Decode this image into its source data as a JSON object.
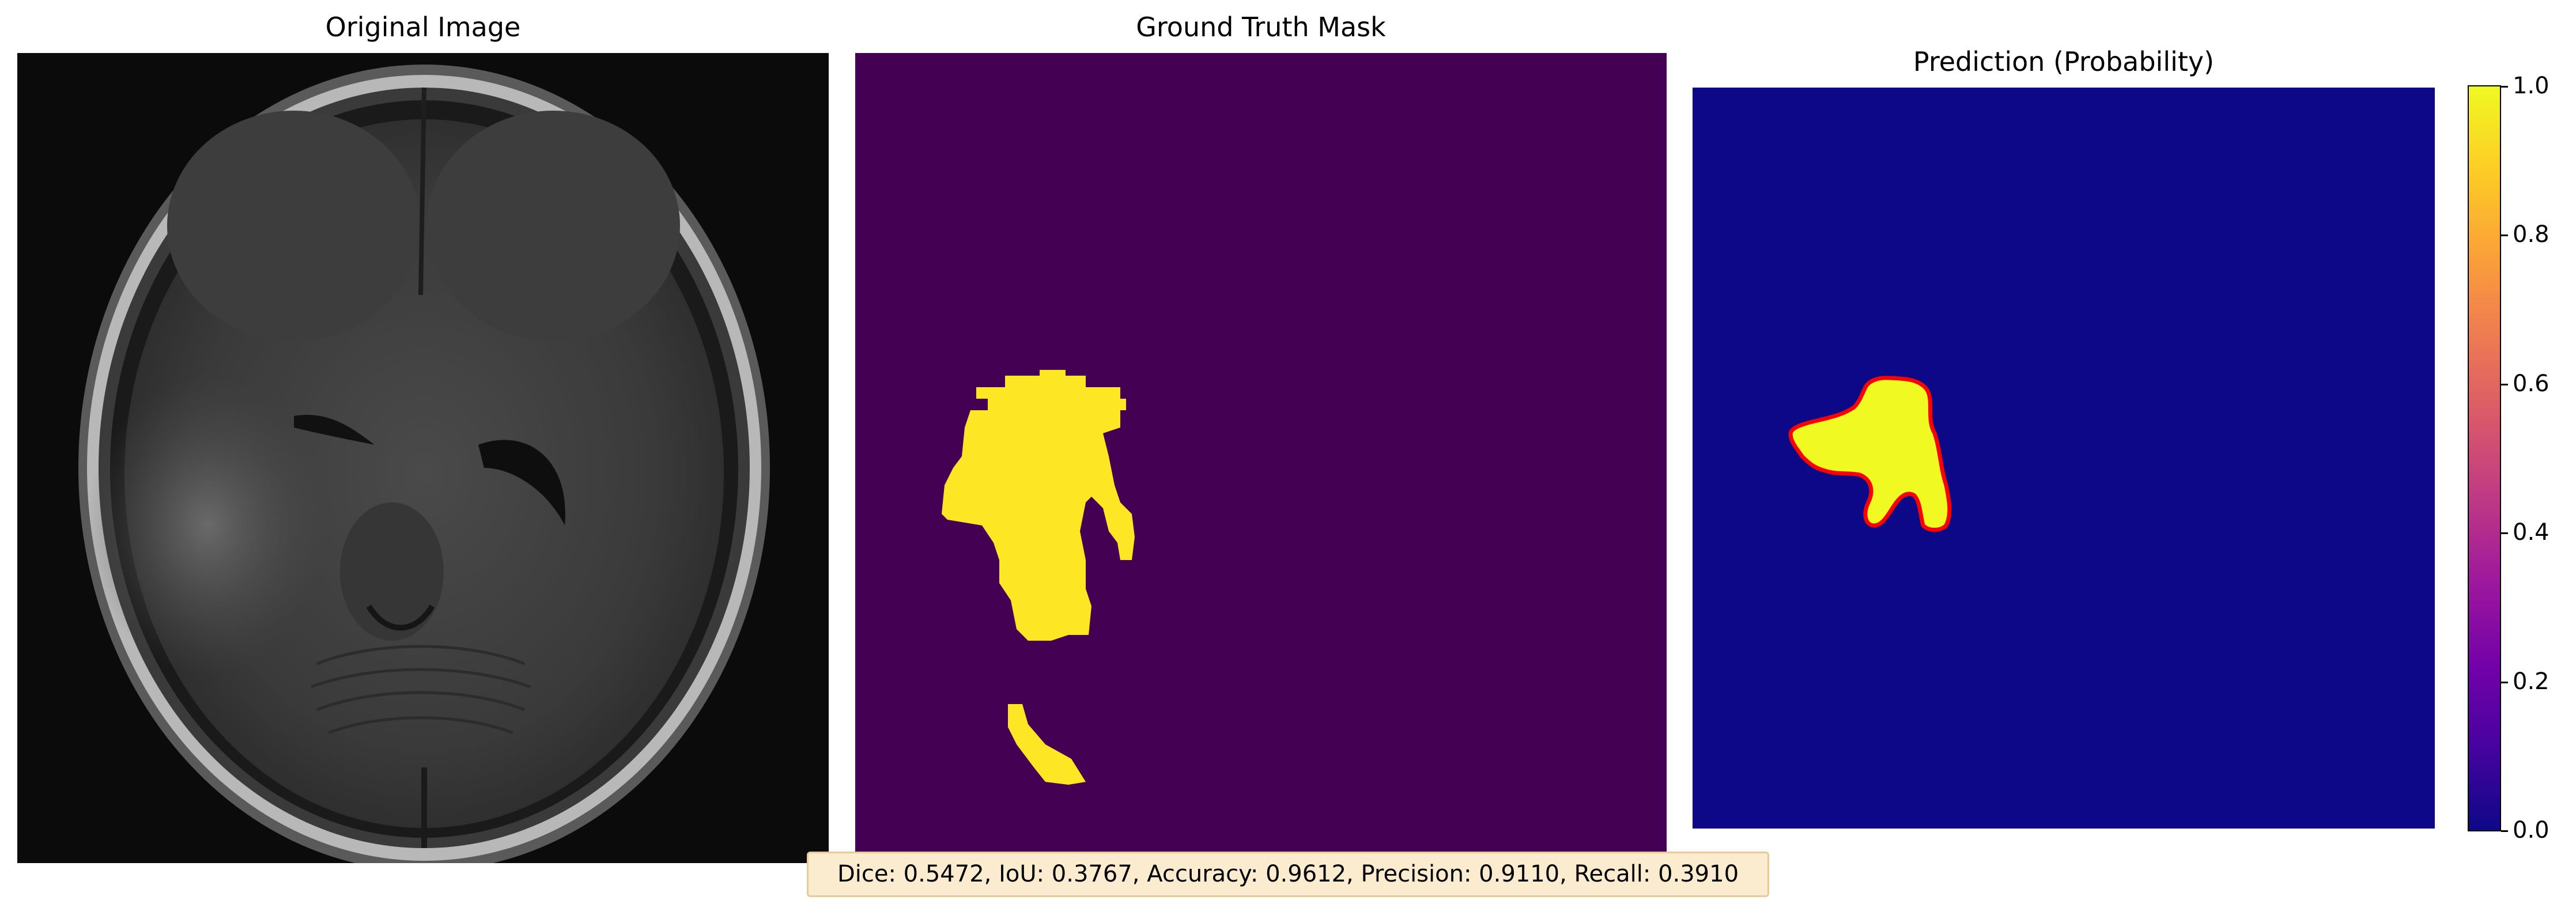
{
  "panels": [
    {
      "title": "Original Image"
    },
    {
      "title": "Ground Truth Mask"
    },
    {
      "title": "Prediction (Probability)"
    }
  ],
  "colorbar": {
    "ticks": [
      "0.0",
      "0.2",
      "0.4",
      "0.6",
      "0.8",
      "1.0"
    ],
    "colormap": "plasma",
    "range": [
      0.0,
      1.0
    ]
  },
  "metrics_text": "Dice: 0.5472, IoU: 0.3767, Accuracy: 0.9612, Precision: 0.9110, Recall: 0.3910",
  "colors": {
    "mask_background": "#440154",
    "mask_foreground": "#fde725",
    "prediction_background": "#0d0887",
    "prediction_foreground": "#f0f921",
    "prediction_contour": "#ff0000",
    "metrics_box_background": "#fbebcf"
  },
  "chart_data": {
    "type": "heatmap",
    "figures": [
      {
        "title": "Original Image",
        "content": "grayscale brain MRI (axial)"
      },
      {
        "title": "Ground Truth Mask",
        "colormap": "viridis",
        "values": [
          0,
          1
        ]
      },
      {
        "title": "Prediction (Probability)",
        "colormap": "plasma",
        "clim": [
          0.0,
          1.0
        ],
        "colorbar_ticks": [
          0.0,
          0.2,
          0.4,
          0.6,
          0.8,
          1.0
        ]
      }
    ],
    "metrics": {
      "Dice": 0.5472,
      "IoU": 0.3767,
      "Accuracy": 0.9612,
      "Precision": 0.911,
      "Recall": 0.391
    }
  }
}
